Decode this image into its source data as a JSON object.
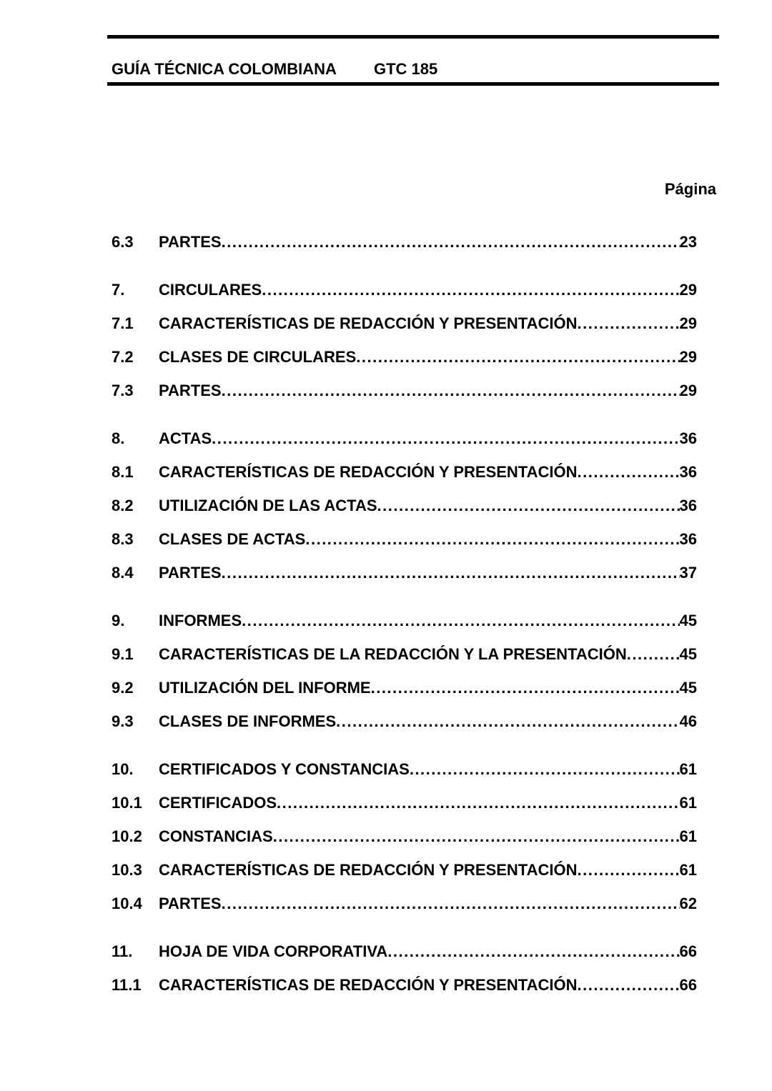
{
  "header": {
    "title": "GUÍA TÉCNICA COLOMBIANA",
    "code": "GTC 185"
  },
  "toc": {
    "page_label": "Página",
    "groups": [
      {
        "entries": [
          {
            "num": "6.3",
            "title": "PARTES",
            "page": "23"
          }
        ]
      },
      {
        "entries": [
          {
            "num": "7.",
            "title": "CIRCULARES",
            "page": "29"
          },
          {
            "num": "7.1",
            "title": "CARACTERÍSTICAS DE REDACCIÓN Y PRESENTACIÓN",
            "page": "29"
          },
          {
            "num": "7.2",
            "title": "CLASES DE CIRCULARES",
            "page": "29"
          },
          {
            "num": "7.3",
            "title": "PARTES",
            "page": "29"
          }
        ]
      },
      {
        "entries": [
          {
            "num": "8.",
            "title": "ACTAS",
            "page": "36"
          },
          {
            "num": "8.1",
            "title": "CARACTERÍSTICAS DE REDACCIÓN Y PRESENTACIÓN",
            "page": "36"
          },
          {
            "num": "8.2",
            "title": "UTILIZACIÓN DE LAS ACTAS",
            "page": "36"
          },
          {
            "num": "8.3",
            "title": "CLASES DE ACTAS",
            "page": "36"
          },
          {
            "num": "8.4",
            "title": "PARTES",
            "page": "37"
          }
        ]
      },
      {
        "entries": [
          {
            "num": "9.",
            "title": "INFORMES",
            "page": "45"
          },
          {
            "num": "9.1",
            "title": "CARACTERÍSTICAS DE LA REDACCIÓN Y LA PRESENTACIÓN",
            "page": "45"
          },
          {
            "num": "9.2",
            "title": "UTILIZACIÓN DEL INFORME",
            "page": "45"
          },
          {
            "num": "9.3",
            "title": "CLASES DE INFORMES",
            "page": "46"
          }
        ]
      },
      {
        "entries": [
          {
            "num": "10.",
            "title": "CERTIFICADOS Y CONSTANCIAS",
            "page": "61"
          },
          {
            "num": "10.1",
            "title": "CERTIFICADOS",
            "page": "61"
          },
          {
            "num": "10.2",
            "title": "CONSTANCIAS",
            "page": "61"
          },
          {
            "num": "10.3",
            "title": "CARACTERÍSTICAS DE REDACCIÓN Y PRESENTACIÓN",
            "page": "61"
          },
          {
            "num": "10.4",
            "title": "PARTES",
            "page": "62"
          }
        ]
      },
      {
        "entries": [
          {
            "num": "11.",
            "title": "HOJA DE VIDA CORPORATIVA",
            "page": "66"
          },
          {
            "num": "11.1",
            "title": "CARACTERÍSTICAS DE REDACCIÓN Y PRESENTACIÓN",
            "page": "66"
          }
        ]
      }
    ]
  },
  "colors": {
    "text": "#000000",
    "background": "#ffffff",
    "rule": "#000000"
  }
}
